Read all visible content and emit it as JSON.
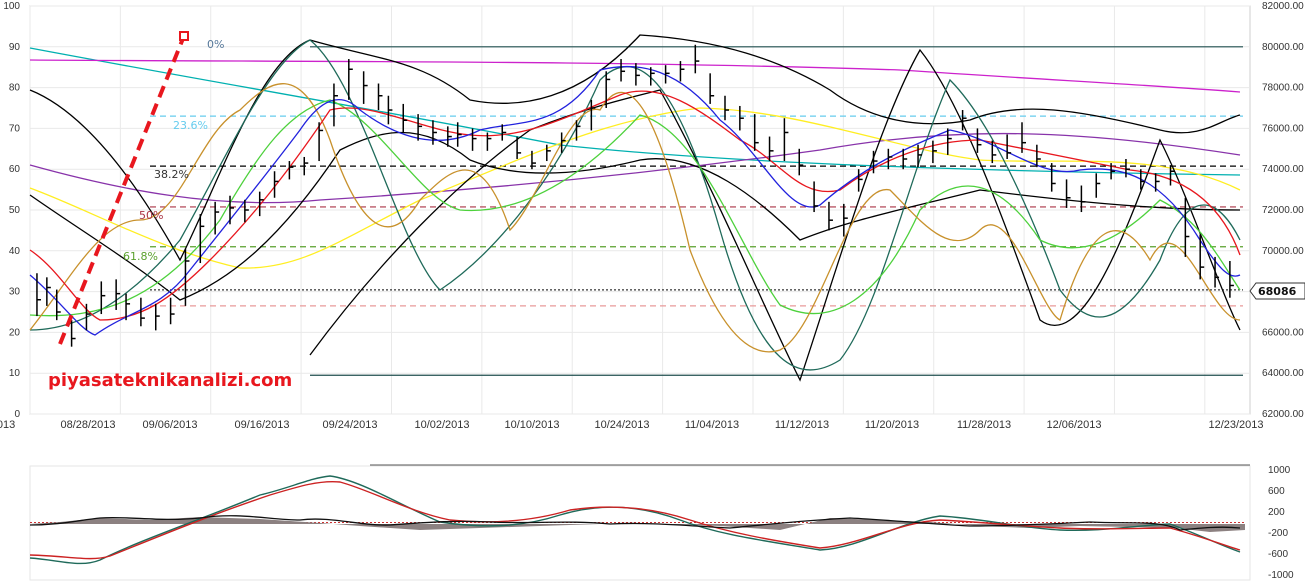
{
  "watermark": "piyasateknikanalizi.com",
  "colors": {
    "grid": "#e9e9e9",
    "price_bar": "#000000",
    "fib_red_dash": "#e8171e"
  },
  "chart_data": [
    {
      "type": "line",
      "title": "",
      "left_axis": {
        "ticks": [
          "100",
          "90",
          "80",
          "70",
          "60",
          "50",
          "40",
          "30",
          "20",
          "10",
          "0"
        ],
        "ylim": [
          0,
          100
        ]
      },
      "right_axis": {
        "ticks": [
          "82000.00",
          "80000.00",
          "78000.00",
          "76000.00",
          "74000.00",
          "72000.00",
          "70000.00",
          "68000.00",
          "66000.00",
          "64000.00",
          "62000.00"
        ],
        "ylim": [
          62000,
          82000
        ]
      },
      "x_labels": [
        "013",
        "08/28/2013",
        "09/06/2013",
        "09/16/2013",
        "09/24/2013",
        "10/02/2013",
        "10/10/2013",
        "10/24/2013",
        "11/04/2013",
        "11/12/2013",
        "11/20/2013",
        "11/28/2013",
        "12/06/2013",
        "12/23/2013"
      ],
      "last_price_label": "68086",
      "last_price": 68086,
      "fib_labels": [
        "0%",
        "23.6%",
        "38.2%",
        "50%",
        "61.8%"
      ],
      "fib_levels": [
        {
          "label": "0%",
          "value": 80000,
          "color": "#1f4e4e",
          "style": "solid"
        },
        {
          "label": "23.6%",
          "value": 76600,
          "color": "#66ccee",
          "style": "dash"
        },
        {
          "label": "38.2%",
          "value": 74150,
          "color": "#000000",
          "style": "dash"
        },
        {
          "label": "50%",
          "value": 72150,
          "color": "#aa3344",
          "style": "dash"
        },
        {
          "label": "61.8%",
          "value": 70200,
          "color": "#5aa02c",
          "style": "dash"
        },
        {
          "label": "",
          "value": 68086,
          "color": "#333333",
          "style": "dot"
        },
        {
          "label": "",
          "value": 67300,
          "color": "#e89a9a",
          "style": "dash"
        },
        {
          "label": "",
          "value": 63900,
          "color": "#1f4e4e",
          "style": "solid"
        }
      ],
      "price_bars": [
        {
          "x": 1,
          "hi": 68900,
          "lo": 66800,
          "cl": 67600
        },
        {
          "x": 3,
          "hi": 68700,
          "lo": 67300,
          "cl": 68200
        },
        {
          "x": 5,
          "hi": 68100,
          "lo": 66600,
          "cl": 67000
        },
        {
          "x": 8,
          "hi": 66600,
          "lo": 65300,
          "cl": 65700
        },
        {
          "x": 11,
          "hi": 67400,
          "lo": 66100,
          "cl": 66900
        },
        {
          "x": 14,
          "hi": 68500,
          "lo": 66900,
          "cl": 67800
        },
        {
          "x": 17,
          "hi": 68600,
          "lo": 67100,
          "cl": 67900
        },
        {
          "x": 19,
          "hi": 67900,
          "lo": 66600,
          "cl": 67400
        },
        {
          "x": 22,
          "hi": 67700,
          "lo": 66300,
          "cl": 66700
        },
        {
          "x": 25,
          "hi": 67400,
          "lo": 66100,
          "cl": 66800
        },
        {
          "x": 28,
          "hi": 67700,
          "lo": 66400,
          "cl": 66900
        },
        {
          "x": 31,
          "hi": 70100,
          "lo": 67300,
          "cl": 69500
        },
        {
          "x": 34,
          "hi": 71800,
          "lo": 69400,
          "cl": 71200
        },
        {
          "x": 37,
          "hi": 72400,
          "lo": 70800,
          "cl": 71900
        },
        {
          "x": 40,
          "hi": 72700,
          "lo": 71300,
          "cl": 72100
        },
        {
          "x": 43,
          "hi": 72500,
          "lo": 71400,
          "cl": 72000
        },
        {
          "x": 46,
          "hi": 72900,
          "lo": 71700,
          "cl": 72500
        },
        {
          "x": 49,
          "hi": 73900,
          "lo": 72600,
          "cl": 73400
        },
        {
          "x": 52,
          "hi": 74400,
          "lo": 73500,
          "cl": 74100
        },
        {
          "x": 55,
          "hi": 74600,
          "lo": 73700,
          "cl": 74300
        },
        {
          "x": 58,
          "hi": 76300,
          "lo": 74400,
          "cl": 75900
        },
        {
          "x": 61,
          "hi": 78200,
          "lo": 76100,
          "cl": 77600
        },
        {
          "x": 64,
          "hi": 79400,
          "lo": 77400,
          "cl": 78900
        },
        {
          "x": 67,
          "hi": 78800,
          "lo": 77200,
          "cl": 78100
        },
        {
          "x": 70,
          "hi": 78200,
          "lo": 76900,
          "cl": 77600
        },
        {
          "x": 72,
          "hi": 77600,
          "lo": 76200,
          "cl": 76900
        },
        {
          "x": 75,
          "hi": 77200,
          "lo": 75800,
          "cl": 76400
        },
        {
          "x": 78,
          "hi": 76700,
          "lo": 75400,
          "cl": 76100
        },
        {
          "x": 81,
          "hi": 76400,
          "lo": 75200,
          "cl": 75800
        },
        {
          "x": 84,
          "hi": 76100,
          "lo": 75100,
          "cl": 75600
        },
        {
          "x": 86,
          "hi": 76300,
          "lo": 75100,
          "cl": 75700
        },
        {
          "x": 89,
          "hi": 76000,
          "lo": 74900,
          "cl": 75500
        },
        {
          "x": 92,
          "hi": 75800,
          "lo": 74900,
          "cl": 75500
        },
        {
          "x": 95,
          "hi": 76200,
          "lo": 75400,
          "cl": 75800
        },
        {
          "x": 98,
          "hi": 75600,
          "lo": 74500,
          "cl": 74800
        },
        {
          "x": 101,
          "hi": 74900,
          "lo": 74000,
          "cl": 74300
        },
        {
          "x": 104,
          "hi": 75200,
          "lo": 74400,
          "cl": 74900
        },
        {
          "x": 107,
          "hi": 75800,
          "lo": 74800,
          "cl": 75400
        },
        {
          "x": 110,
          "hi": 76400,
          "lo": 75400,
          "cl": 76100
        },
        {
          "x": 113,
          "hi": 77400,
          "lo": 75900,
          "cl": 77000
        },
        {
          "x": 116,
          "hi": 78800,
          "lo": 77000,
          "cl": 78400
        },
        {
          "x": 119,
          "hi": 79400,
          "lo": 78300,
          "cl": 78800
        },
        {
          "x": 122,
          "hi": 79200,
          "lo": 78100,
          "cl": 78600
        },
        {
          "x": 125,
          "hi": 79000,
          "lo": 78100,
          "cl": 78700
        },
        {
          "x": 128,
          "hi": 79100,
          "lo": 78200,
          "cl": 78700
        },
        {
          "x": 131,
          "hi": 79300,
          "lo": 78300,
          "cl": 78900
        },
        {
          "x": 134,
          "hi": 80100,
          "lo": 78700,
          "cl": 79300
        },
        {
          "x": 137,
          "hi": 78700,
          "lo": 77200,
          "cl": 77600
        },
        {
          "x": 140,
          "hi": 77600,
          "lo": 76400,
          "cl": 76900
        },
        {
          "x": 143,
          "hi": 77100,
          "lo": 75900,
          "cl": 76500
        },
        {
          "x": 146,
          "hi": 76700,
          "lo": 74900,
          "cl": 75300
        },
        {
          "x": 149,
          "hi": 75600,
          "lo": 74400,
          "cl": 74900
        },
        {
          "x": 152,
          "hi": 76500,
          "lo": 74400,
          "cl": 75800
        },
        {
          "x": 155,
          "hi": 75000,
          "lo": 73700,
          "cl": 74200
        },
        {
          "x": 158,
          "hi": 73400,
          "lo": 71900,
          "cl": 72200
        },
        {
          "x": 161,
          "hi": 72400,
          "lo": 71000,
          "cl": 71500
        },
        {
          "x": 164,
          "hi": 72300,
          "lo": 70700,
          "cl": 71600
        },
        {
          "x": 167,
          "hi": 74000,
          "lo": 72900,
          "cl": 73500
        },
        {
          "x": 170,
          "hi": 74900,
          "lo": 73800,
          "cl": 74400
        },
        {
          "x": 173,
          "hi": 75000,
          "lo": 74000,
          "cl": 74600
        },
        {
          "x": 176,
          "hi": 75000,
          "lo": 74000,
          "cl": 74500
        },
        {
          "x": 179,
          "hi": 75200,
          "lo": 74100,
          "cl": 74700
        },
        {
          "x": 182,
          "hi": 75400,
          "lo": 74300,
          "cl": 74900
        },
        {
          "x": 185,
          "hi": 76000,
          "lo": 74700,
          "cl": 75500
        },
        {
          "x": 188,
          "hi": 76900,
          "lo": 75900,
          "cl": 76500
        },
        {
          "x": 191,
          "hi": 76000,
          "lo": 74800,
          "cl": 75200
        },
        {
          "x": 194,
          "hi": 75400,
          "lo": 74300,
          "cl": 74700
        },
        {
          "x": 197,
          "hi": 75700,
          "lo": 74500,
          "cl": 74800
        },
        {
          "x": 200,
          "hi": 76300,
          "lo": 74800,
          "cl": 75300
        },
        {
          "x": 203,
          "hi": 75200,
          "lo": 74100,
          "cl": 74500
        },
        {
          "x": 206,
          "hi": 74300,
          "lo": 72900,
          "cl": 73300
        },
        {
          "x": 209,
          "hi": 73500,
          "lo": 72100,
          "cl": 72600
        },
        {
          "x": 212,
          "hi": 73200,
          "lo": 71900,
          "cl": 72400
        },
        {
          "x": 215,
          "hi": 73800,
          "lo": 72600,
          "cl": 73300
        },
        {
          "x": 218,
          "hi": 74300,
          "lo": 73500,
          "cl": 73900
        },
        {
          "x": 221,
          "hi": 74500,
          "lo": 73600,
          "cl": 74000
        },
        {
          "x": 224,
          "hi": 74000,
          "lo": 73000,
          "cl": 73400
        },
        {
          "x": 227,
          "hi": 73800,
          "lo": 72900,
          "cl": 73400
        },
        {
          "x": 230,
          "hi": 74200,
          "lo": 73200,
          "cl": 73900
        },
        {
          "x": 233,
          "hi": 72600,
          "lo": 69700,
          "cl": 70700
        },
        {
          "x": 236,
          "hi": 70800,
          "lo": 68600,
          "cl": 69200
        },
        {
          "x": 239,
          "hi": 69700,
          "lo": 68200,
          "cl": 68700
        },
        {
          "x": 242,
          "hi": 69500,
          "lo": 67700,
          "cl": 68300
        }
      ],
      "lower_panel": {
        "y_ticks": [
          "1000",
          "600",
          "200",
          "-200",
          "-600",
          "-1000"
        ],
        "ylim": [
          -1000,
          1000
        ]
      }
    }
  ]
}
